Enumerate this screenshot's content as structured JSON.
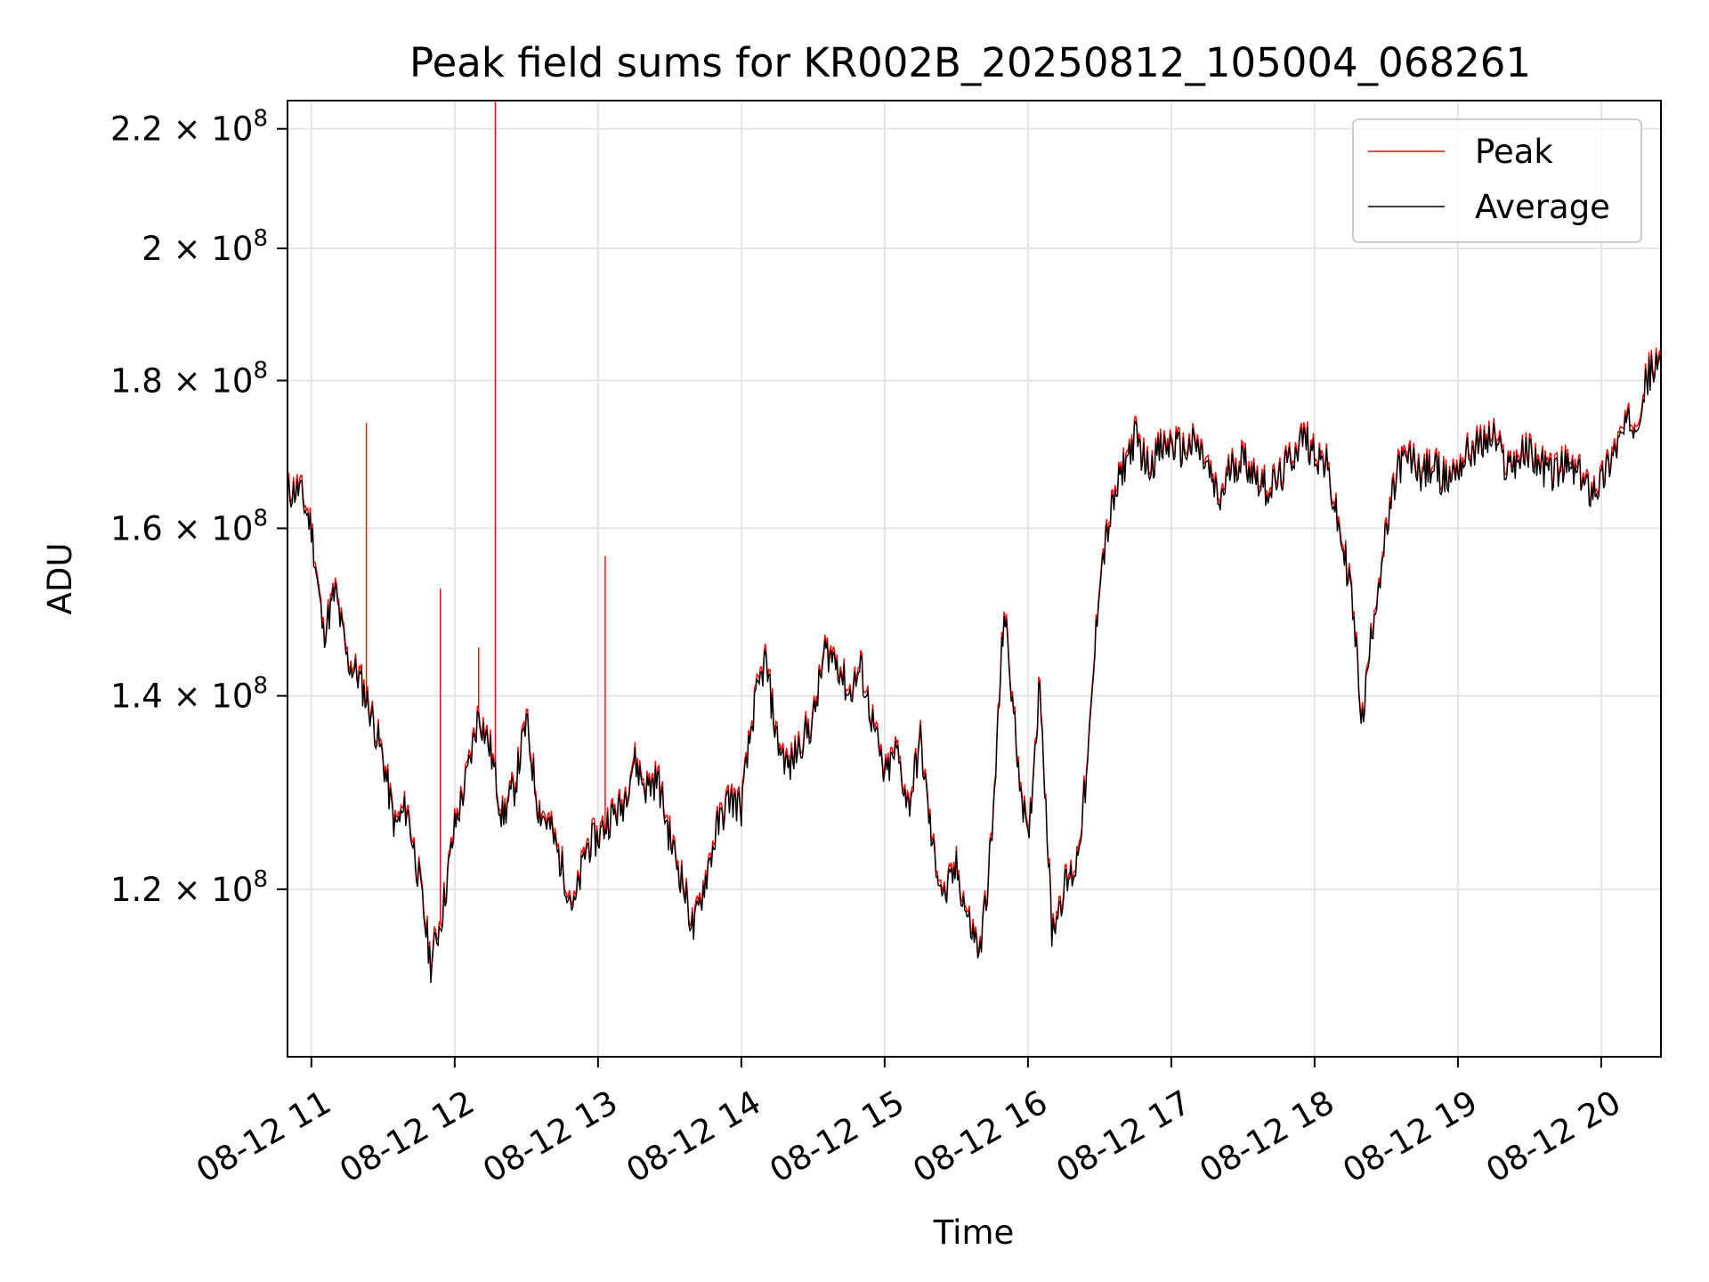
{
  "chart_data": {
    "type": "line",
    "title": "Peak field sums for KR002B_20250812_105004_068261",
    "xlabel": "Time",
    "ylabel": "ADU",
    "yscale": "log",
    "ylim": [
      105000000,
      225000000
    ],
    "xlim": [
      "2025-08-12 10:50",
      "2025-08-12 20:25"
    ],
    "grid": true,
    "legend_position": "top-right",
    "x_ticks": [
      {
        "value": "2025-08-12 11:00",
        "label": "08-12 11"
      },
      {
        "value": "2025-08-12 12:00",
        "label": "08-12 12"
      },
      {
        "value": "2025-08-12 13:00",
        "label": "08-12 13"
      },
      {
        "value": "2025-08-12 14:00",
        "label": "08-12 14"
      },
      {
        "value": "2025-08-12 15:00",
        "label": "08-12 15"
      },
      {
        "value": "2025-08-12 16:00",
        "label": "08-12 16"
      },
      {
        "value": "2025-08-12 17:00",
        "label": "08-12 17"
      },
      {
        "value": "2025-08-12 18:00",
        "label": "08-12 18"
      },
      {
        "value": "2025-08-12 19:00",
        "label": "08-12 19"
      },
      {
        "value": "2025-08-12 20:00",
        "label": "08-12 20"
      }
    ],
    "y_ticks": [
      {
        "value": 120000000,
        "mantissa": "1.2",
        "exp": "8"
      },
      {
        "value": 140000000,
        "mantissa": "1.4",
        "exp": "8"
      },
      {
        "value": 160000000,
        "mantissa": "1.6",
        "exp": "8"
      },
      {
        "value": 180000000,
        "mantissa": "1.8",
        "exp": "8"
      },
      {
        "value": 200000000,
        "mantissa": "2",
        "exp": "8"
      },
      {
        "value": 220000000,
        "mantissa": "2.2",
        "exp": "8"
      }
    ],
    "series": [
      {
        "name": "Average",
        "color": "#000000",
        "x": [
          "2025-08-12 10:50",
          "2025-08-12 10:55",
          "2025-08-12 11:00",
          "2025-08-12 11:05",
          "2025-08-12 11:10",
          "2025-08-12 11:15",
          "2025-08-12 11:20",
          "2025-08-12 11:25",
          "2025-08-12 11:30",
          "2025-08-12 11:35",
          "2025-08-12 11:40",
          "2025-08-12 11:45",
          "2025-08-12 11:50",
          "2025-08-12 11:55",
          "2025-08-12 12:00",
          "2025-08-12 12:05",
          "2025-08-12 12:10",
          "2025-08-12 12:15",
          "2025-08-12 12:20",
          "2025-08-12 12:25",
          "2025-08-12 12:30",
          "2025-08-12 12:35",
          "2025-08-12 12:40",
          "2025-08-12 12:45",
          "2025-08-12 12:50",
          "2025-08-12 12:55",
          "2025-08-12 13:00",
          "2025-08-12 13:05",
          "2025-08-12 13:10",
          "2025-08-12 13:15",
          "2025-08-12 13:20",
          "2025-08-12 13:25",
          "2025-08-12 13:30",
          "2025-08-12 13:35",
          "2025-08-12 13:40",
          "2025-08-12 13:45",
          "2025-08-12 13:50",
          "2025-08-12 13:55",
          "2025-08-12 14:00",
          "2025-08-12 14:05",
          "2025-08-12 14:10",
          "2025-08-12 14:15",
          "2025-08-12 14:20",
          "2025-08-12 14:25",
          "2025-08-12 14:30",
          "2025-08-12 14:35",
          "2025-08-12 14:40",
          "2025-08-12 14:45",
          "2025-08-12 14:50",
          "2025-08-12 14:55",
          "2025-08-12 15:00",
          "2025-08-12 15:05",
          "2025-08-12 15:10",
          "2025-08-12 15:15",
          "2025-08-12 15:20",
          "2025-08-12 15:25",
          "2025-08-12 15:30",
          "2025-08-12 15:35",
          "2025-08-12 15:40",
          "2025-08-12 15:45",
          "2025-08-12 15:50",
          "2025-08-12 15:55",
          "2025-08-12 16:00",
          "2025-08-12 16:05",
          "2025-08-12 16:10",
          "2025-08-12 16:15",
          "2025-08-12 16:20",
          "2025-08-12 16:25",
          "2025-08-12 16:30",
          "2025-08-12 16:35",
          "2025-08-12 16:40",
          "2025-08-12 16:45",
          "2025-08-12 16:50",
          "2025-08-12 16:55",
          "2025-08-12 17:00",
          "2025-08-12 17:05",
          "2025-08-12 17:10",
          "2025-08-12 17:15",
          "2025-08-12 17:20",
          "2025-08-12 17:25",
          "2025-08-12 17:30",
          "2025-08-12 17:35",
          "2025-08-12 17:40",
          "2025-08-12 17:45",
          "2025-08-12 17:50",
          "2025-08-12 17:55",
          "2025-08-12 18:00",
          "2025-08-12 18:05",
          "2025-08-12 18:10",
          "2025-08-12 18:15",
          "2025-08-12 18:20",
          "2025-08-12 18:25",
          "2025-08-12 18:30",
          "2025-08-12 18:35",
          "2025-08-12 18:40",
          "2025-08-12 18:45",
          "2025-08-12 18:50",
          "2025-08-12 18:55",
          "2025-08-12 19:00",
          "2025-08-12 19:05",
          "2025-08-12 19:10",
          "2025-08-12 19:15",
          "2025-08-12 19:20",
          "2025-08-12 19:25",
          "2025-08-12 19:30",
          "2025-08-12 19:35",
          "2025-08-12 19:40",
          "2025-08-12 19:45",
          "2025-08-12 19:50",
          "2025-08-12 19:55",
          "2025-08-12 20:00",
          "2025-08-12 20:05",
          "2025-08-12 20:10",
          "2025-08-12 20:15",
          "2025-08-12 20:20",
          "2025-08-12 20:25"
        ],
        "values": [
          164500000,
          165000000,
          160000000,
          147000000,
          152000000,
          144000000,
          142000000,
          138000000,
          133000000,
          126000000,
          128000000,
          121000000,
          113000000,
          118000000,
          126000000,
          131000000,
          138000000,
          134000000,
          127000000,
          130000000,
          137000000,
          128000000,
          126000000,
          122000000,
          118000000,
          124000000,
          125000000,
          127000000,
          128000000,
          133000000,
          130000000,
          131000000,
          125000000,
          121000000,
          116000000,
          121000000,
          126000000,
          129000000,
          128000000,
          138000000,
          144000000,
          135000000,
          132000000,
          135000000,
          137000000,
          145000000,
          144000000,
          140000000,
          143000000,
          137000000,
          131000000,
          134000000,
          128000000,
          135000000,
          124000000,
          119000000,
          122000000,
          117000000,
          114000000,
          125000000,
          150000000,
          135000000,
          124000000,
          142000000,
          116000000,
          120000000,
          122000000,
          132000000,
          154000000,
          162000000,
          168000000,
          172000000,
          168000000,
          170000000,
          171000000,
          170000000,
          171000000,
          168000000,
          163000000,
          168000000,
          169000000,
          167000000,
          165000000,
          166000000,
          169000000,
          172000000,
          170000000,
          168000000,
          160000000,
          153000000,
          137000000,
          150000000,
          159000000,
          168000000,
          169000000,
          167000000,
          168000000,
          166000000,
          168000000,
          170000000,
          171000000,
          172000000,
          168000000,
          169000000,
          170000000,
          168000000,
          167000000,
          168000000,
          167000000,
          165000000,
          166000000,
          170000000,
          173000000,
          175000000,
          181000000,
          182000000
        ]
      },
      {
        "name": "Peak",
        "color": "#ff0000",
        "note_spikes": true,
        "spikes": [
          {
            "x": "2025-08-12 11:23",
            "value": 174000000
          },
          {
            "x": "2025-08-12 11:54",
            "value": 152500000
          },
          {
            "x": "2025-08-12 12:10",
            "value": 145500000
          },
          {
            "x": "2025-08-12 12:17",
            "value": 225000000
          },
          {
            "x": "2025-08-12 13:03",
            "value": 156500000
          }
        ]
      }
    ],
    "legend": [
      {
        "label": "Peak",
        "color": "#ff0000"
      },
      {
        "label": "Average",
        "color": "#000000"
      }
    ]
  }
}
